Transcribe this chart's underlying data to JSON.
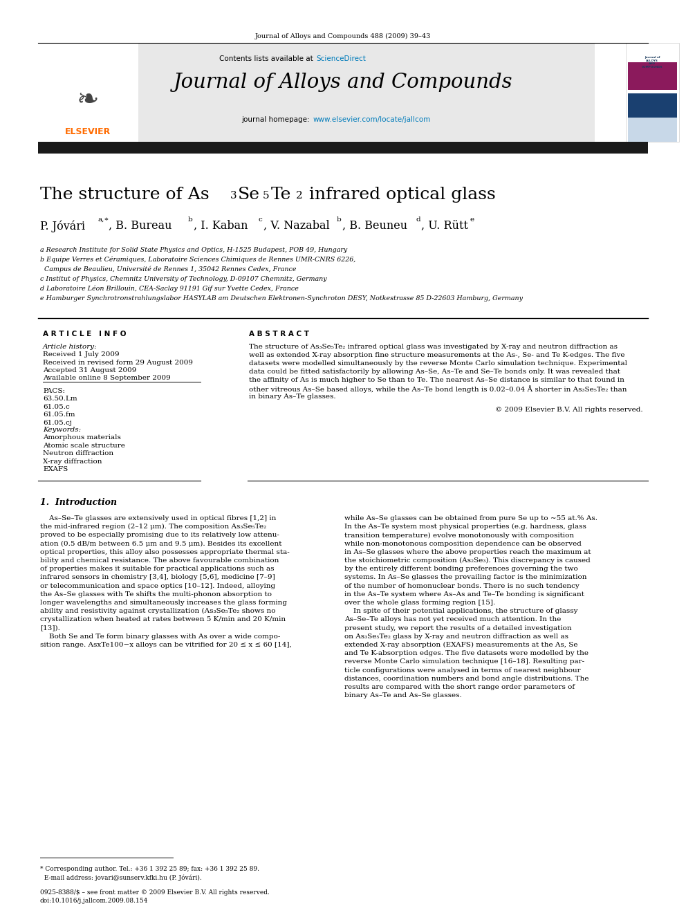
{
  "background_color": "#ffffff",
  "page_width": 9.92,
  "page_height": 13.23,
  "journal_header_text": "Journal of Alloys and Compounds 488 (2009) 39–43",
  "journal_name": "Journal of Alloys and Compounds",
  "contents_text": "Contents lists available at ",
  "science_direct_text": "ScienceDirect",
  "science_direct_color": "#007bba",
  "homepage_label": "journal homepage: ",
  "homepage_url": "www.elsevier.com/locate/jallcom",
  "homepage_url_color": "#007bba",
  "header_bg_color": "#e8e8e8",
  "dark_bar_color": "#1a1a1a",
  "elsevier_color": "#ff6b00",
  "affil_a": "a Research Institute for Solid State Physics and Optics, H-1525 Budapest, POB 49, Hungary",
  "affil_b": "b Equipe Verres et Céramiques, Laboratoire Sciences Chimiques de Rennes UMR-CNRS 6226,",
  "affil_b2": "  Campus de Beaulieu, Université de Rennes 1, 35042 Rennes Cedex, France",
  "affil_c": "c Institut of Physics, Chemnitz University of Technology, D-09107 Chemnitz, Germany",
  "affil_d": "d Laboratoire Léon Brillouin, CEA-Saclay 91191 Gif sur Yvette Cedex, France",
  "affil_e": "e Hamburger Synchrotronstrahlungslabor HASYLAB am Deutschen Elektronen-Synchroton DESY, Notkestrasse 85 D-22603 Hamburg, Germany",
  "article_info_label": "A R T I C L E   I N F O",
  "abstract_label": "A B S T R A C T",
  "article_history_label": "Article history:",
  "received_1": "Received 1 July 2009",
  "received_revised": "Received in revised form 29 August 2009",
  "accepted": "Accepted 31 August 2009",
  "available": "Available online 8 September 2009",
  "pacs_label": "PACS:",
  "pacs_1": "63.50.Lm",
  "pacs_2": "61.05.c",
  "pacs_3": "61.05.fm",
  "pacs_4": "61.05.cj",
  "keywords_label": "Keywords:",
  "kw_1": "Amorphous materials",
  "kw_2": "Atomic scale structure",
  "kw_3": "Neutron diffraction",
  "kw_4": "X-ray diffraction",
  "kw_5": "EXAFS",
  "abstract_text": "The structure of As₃Se₅Te₂ infrared optical glass was investigated by X-ray and neutron diffraction as\nwell as extended X-ray absorption fine structure measurements at the As-, Se- and Te K-edges. The five\ndatasets were modelled simultaneously by the reverse Monte Carlo simulation technique. Experimental\ndata could be fitted satisfactorily by allowing As–Se, As–Te and Se–Te bonds only. It was revealed that\nthe affinity of As is much higher to Se than to Te. The nearest As–Se distance is similar to that found in\nother vitreous As–Se based alloys, while the As–Te bond length is 0.02–0.04 Å shorter in As₃Se₅Te₂ than\nin binary As–Te glasses.",
  "copyright_text": "© 2009 Elsevier B.V. All rights reserved.",
  "intro_header": "1.  Introduction",
  "intro_col1_lines": [
    "    As–Se–Te glasses are extensively used in optical fibres [1,2] in",
    "the mid-infrared region (2–12 μm). The composition As₃Se₅Te₂",
    "proved to be especially promising due to its relatively low attenu-",
    "ation (0.5 dB/m between 6.5 μm and 9.5 μm). Besides its excellent",
    "optical properties, this alloy also possesses appropriate thermal sta-",
    "bility and chemical resistance. The above favourable combination",
    "of properties makes it suitable for practical applications such as",
    "infrared sensors in chemistry [3,4], biology [5,6], medicine [7–9]",
    "or telecommunication and space optics [10–12]. Indeed, alloying",
    "the As–Se glasses with Te shifts the multi-phonon absorption to",
    "longer wavelengths and simultaneously increases the glass forming",
    "ability and resistivity against crystallization (As₃Se₅Te₂ shows no",
    "crystallization when heated at rates between 5 K/min and 20 K/min",
    "[13]).",
    "    Both Se and Te form binary glasses with As over a wide compo-",
    "sition range. AsxTe100−x alloys can be vitrified for 20 ≤ x ≤ 60 [14],"
  ],
  "intro_col2_lines": [
    "while As–Se glasses can be obtained from pure Se up to ~55 at.% As.",
    "In the As–Te system most physical properties (e.g. hardness, glass",
    "transition temperature) evolve monotonously with composition",
    "while non-monotonous composition dependence can be observed",
    "in As–Se glasses where the above properties reach the maximum at",
    "the stoichiometric composition (As₂Se₃). This discrepancy is caused",
    "by the entirely different bonding preferences governing the two",
    "systems. In As–Se glasses the prevailing factor is the minimization",
    "of the number of homonuclear bonds. There is no such tendency",
    "in the As–Te system where As–As and Te–Te bonding is significant",
    "over the whole glass forming region [15].",
    "    In spite of their potential applications, the structure of glassy",
    "As–Se–Te alloys has not yet received much attention. In the",
    "present study, we report the results of a detailed investigation",
    "on As₃Se₅Te₂ glass by X-ray and neutron diffraction as well as",
    "extended X-ray absorption (EXAFS) measurements at the As, Se",
    "and Te K-absorption edges. The five datasets were modelled by the",
    "reverse Monte Carlo simulation technique [16–18]. Resulting par-",
    "ticle configurations were analysed in terms of nearest neighbour",
    "distances, coordination numbers and bond angle distributions. The",
    "results are compared with the short range order parameters of",
    "binary As–Te and As–Se glasses."
  ],
  "footnote_line1": "* Corresponding author. Tel.: +36 1 392 25 89; fax: +36 1 392 25 89.",
  "footnote_line2": "  E-mail address: jovari@sunserv.kfki.hu (P. Jóvári).",
  "doi_line1": "0925-8388/$ – see front matter © 2009 Elsevier B.V. All rights reserved.",
  "doi_line2": "doi:10.1016/j.jallcom.2009.08.154"
}
